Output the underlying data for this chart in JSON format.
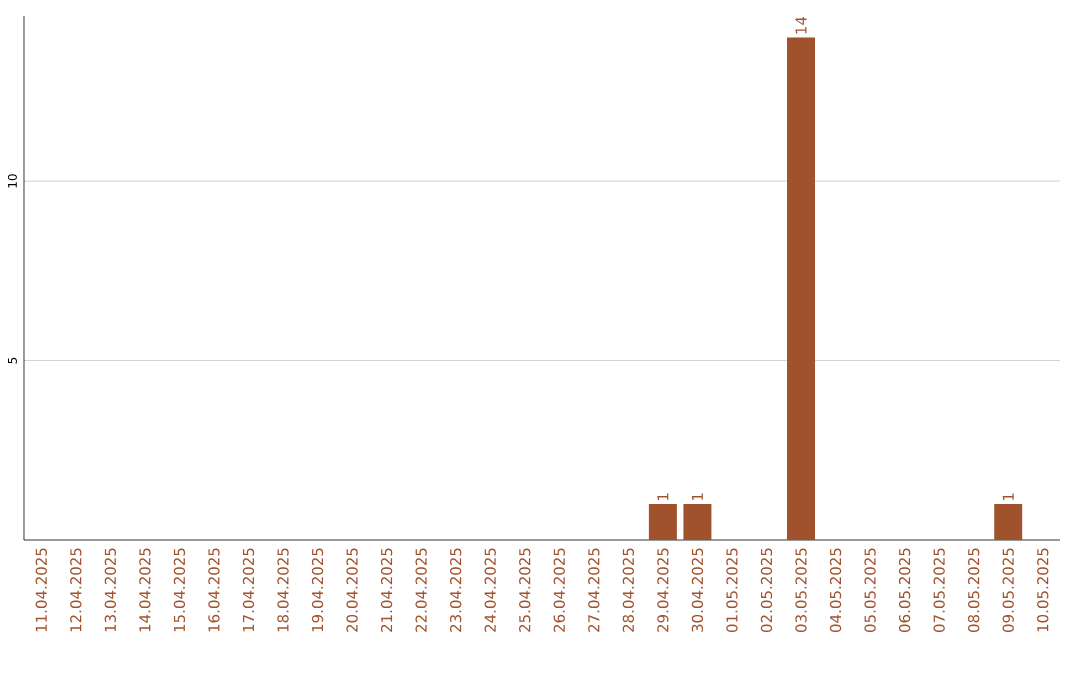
{
  "chart_data": {
    "type": "bar",
    "categories": [
      "11.04.2025",
      "12.04.2025",
      "13.04.2025",
      "14.04.2025",
      "15.04.2025",
      "16.04.2025",
      "17.04.2025",
      "18.04.2025",
      "19.04.2025",
      "20.04.2025",
      "21.04.2025",
      "22.04.2025",
      "23.04.2025",
      "24.04.2025",
      "25.04.2025",
      "26.04.2025",
      "27.04.2025",
      "28.04.2025",
      "29.04.2025",
      "30.04.2025",
      "01.05.2025",
      "02.05.2025",
      "03.05.2025",
      "04.05.2025",
      "05.05.2025",
      "06.05.2025",
      "07.05.2025",
      "08.05.2025",
      "09.05.2025",
      "10.05.2025"
    ],
    "values": [
      0,
      0,
      0,
      0,
      0,
      0,
      0,
      0,
      0,
      0,
      0,
      0,
      0,
      0,
      0,
      0,
      0,
      0,
      1,
      1,
      0,
      0,
      14,
      0,
      0,
      0,
      0,
      0,
      1,
      0
    ],
    "value_labels": [
      null,
      null,
      null,
      null,
      null,
      null,
      null,
      null,
      null,
      null,
      null,
      null,
      null,
      null,
      null,
      null,
      null,
      null,
      "1",
      "1",
      null,
      null,
      "14",
      null,
      null,
      null,
      null,
      null,
      "1",
      null
    ],
    "color": "#a0522d",
    "ylim": [
      0,
      14.6
    ],
    "yticks": [
      5,
      10
    ],
    "grid": "y"
  }
}
